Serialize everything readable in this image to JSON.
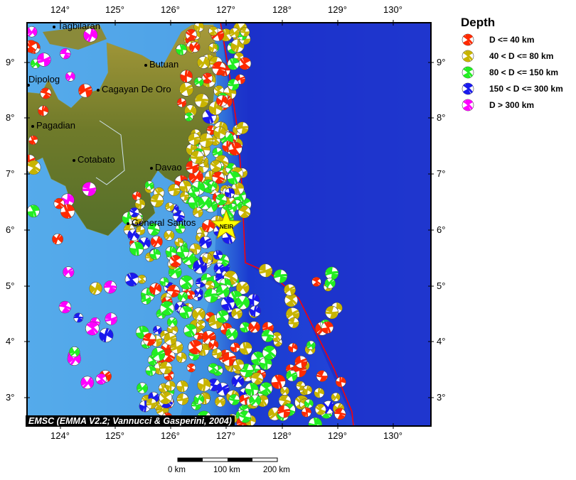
{
  "legend": {
    "title": "Depth",
    "items": [
      {
        "label": "D <= 40 km",
        "color": "#ff2a00"
      },
      {
        "label": "40 < D <= 80 km",
        "color": "#c8b400"
      },
      {
        "label": "80 < D <= 150 km",
        "color": "#22ee22"
      },
      {
        "label": "150 < D <= 300 km",
        "color": "#1a1aee"
      },
      {
        "label": "D > 300 km",
        "color": "#ff00ff"
      }
    ]
  },
  "axes": {
    "lon_top": [
      "124°",
      "125°",
      "126°",
      "127°",
      "128°",
      "129°",
      "130°"
    ],
    "lon_bottom": [
      "124°",
      "125°",
      "126°",
      "127°",
      "128°",
      "129°",
      "130°"
    ],
    "lat_left": [
      "9°",
      "8°",
      "7°",
      "6°",
      "5°",
      "4°",
      "3°"
    ],
    "lat_right": [
      "9°",
      "8°",
      "7°",
      "6°",
      "5°",
      "4°",
      "3°"
    ]
  },
  "cities": [
    {
      "name": "Tagbilaran"
    },
    {
      "name": "Butuan"
    },
    {
      "name": "Cagayan De Oro"
    },
    {
      "name": "Dipolog"
    },
    {
      "name": "Pagadian"
    },
    {
      "name": "Cotabato"
    },
    {
      "name": "Davao"
    },
    {
      "name": "General Santos"
    }
  ],
  "station": {
    "label": "NEIR",
    "color": "#ffff00"
  },
  "trench_color": "#ff0000",
  "credit": "EMSC (EMMA V2.2; Vannucci & Gasperini, 2004)",
  "scale": {
    "labels": [
      "0 km",
      "100 km",
      "200 km"
    ]
  }
}
